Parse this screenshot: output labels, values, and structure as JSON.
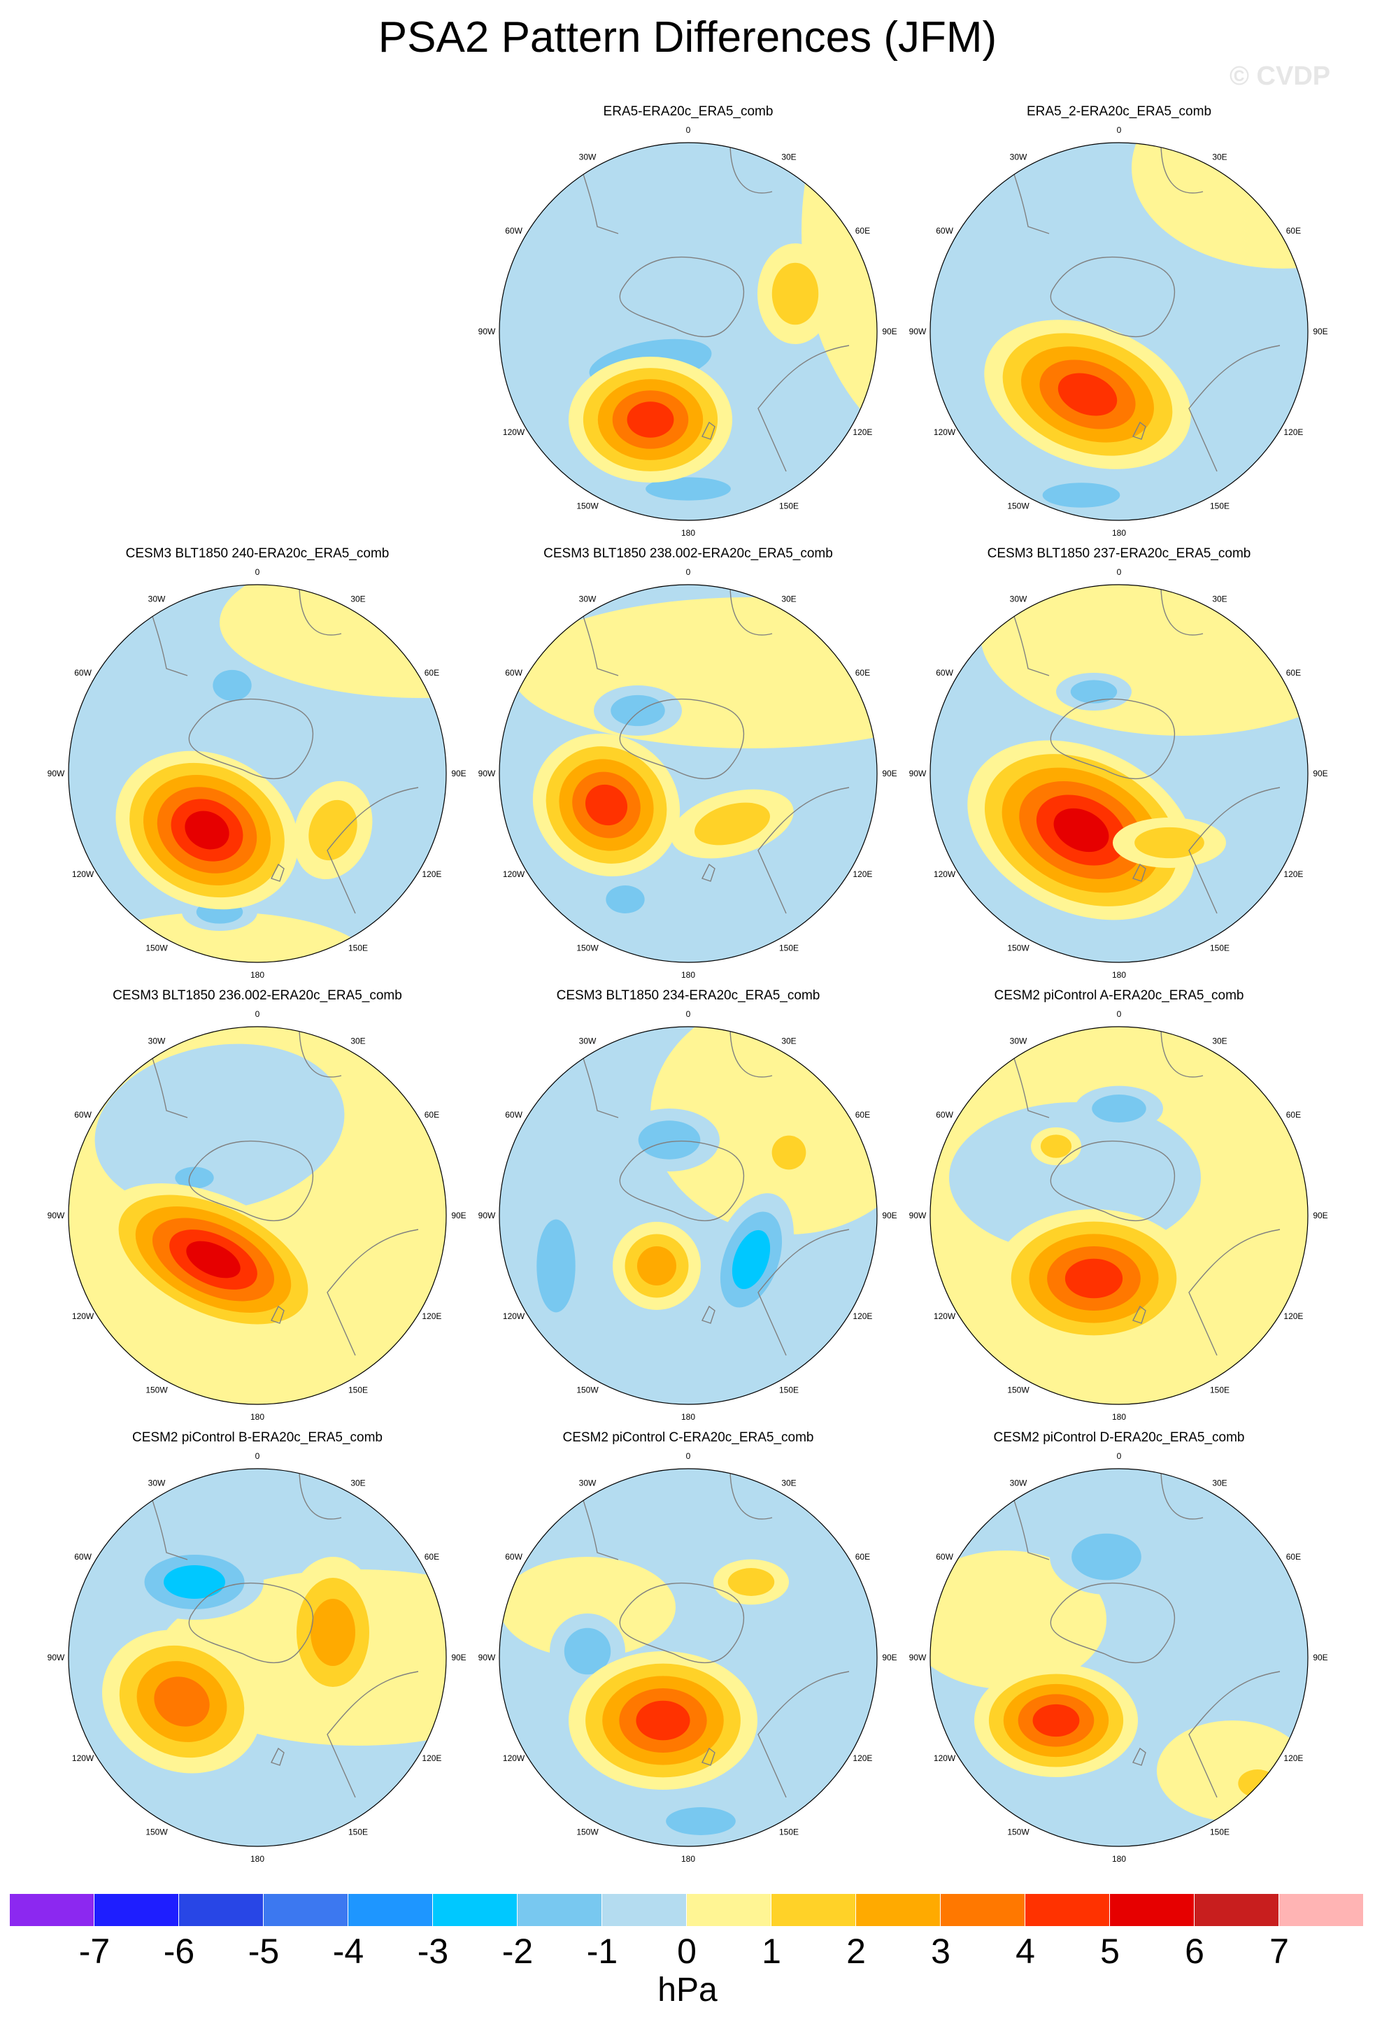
{
  "figure": {
    "title": "PSA2 Pattern Differences (JFM)",
    "watermark": "© CVDP",
    "units": "hPa"
  },
  "longitude_labels": {
    "top": "0",
    "bottom": "180",
    "left": "90W",
    "right": "90E",
    "upper_left_near": "30W",
    "upper_right_near": "30E",
    "upper_left": "60W",
    "upper_right": "60E",
    "lower_left": "120W",
    "lower_right": "120E",
    "lower_left_near": "150W",
    "lower_right_near": "150E"
  },
  "map_colors": {
    "neg1": "#b4dcf0",
    "pos1": "#fff594",
    "coast": "#808080",
    "border": "#000000"
  },
  "panels": [
    {
      "title": "ERA5-ERA20c_ERA5_comb",
      "pattern": "a"
    },
    {
      "title": "ERA5_2-ERA20c_ERA5_comb",
      "pattern": "b"
    },
    {
      "title": "CESM3 BLT1850 240-ERA20c_ERA5_comb",
      "pattern": "c"
    },
    {
      "title": "CESM3 BLT1850 238.002-ERA20c_ERA5_comb",
      "pattern": "d"
    },
    {
      "title": "CESM3 BLT1850 237-ERA20c_ERA5_comb",
      "pattern": "e"
    },
    {
      "title": "CESM3 BLT1850 236.002-ERA20c_ERA5_comb",
      "pattern": "f"
    },
    {
      "title": "CESM3 BLT1850 234-ERA20c_ERA5_comb",
      "pattern": "g"
    },
    {
      "title": "CESM2 piControl A-ERA20c_ERA5_comb",
      "pattern": "h"
    },
    {
      "title": "CESM2 piControl B-ERA20c_ERA5_comb",
      "pattern": "i"
    },
    {
      "title": "CESM2 piControl C-ERA20c_ERA5_comb",
      "pattern": "j"
    },
    {
      "title": "CESM2 piControl D-ERA20c_ERA5_comb",
      "pattern": "k"
    }
  ],
  "colorbar": {
    "colors": [
      "#8c28f0",
      "#1e1eff",
      "#2846e6",
      "#3c78f0",
      "#1e96ff",
      "#00c8ff",
      "#78c8f0",
      "#b4dcf0",
      "#fff594",
      "#ffd228",
      "#ffaa00",
      "#ff7800",
      "#ff3200",
      "#e60000",
      "#c81e1e",
      "#ffb4b4"
    ],
    "labels": [
      "-7",
      "-6",
      "-5",
      "-4",
      "-3",
      "-2",
      "-1",
      "0",
      "1",
      "2",
      "3",
      "4",
      "5",
      "6",
      "7"
    ]
  }
}
